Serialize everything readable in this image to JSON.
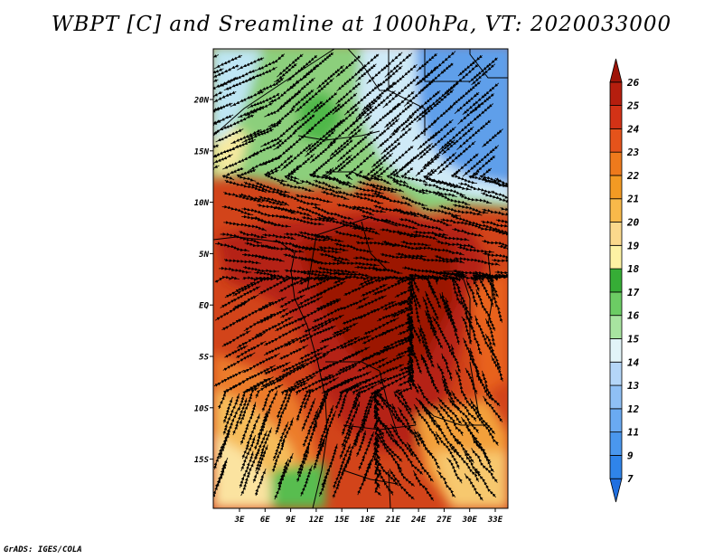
{
  "title": "WBPT [C] and Sreamline at 1000hPa, VT: 2020033000",
  "credit": "GrADS: IGES/COLA",
  "map": {
    "lat_labels": [
      "20N",
      "15N",
      "10N",
      "5N",
      "EQ",
      "5S",
      "10S",
      "15S"
    ],
    "lon_labels": [
      "3E",
      "6E",
      "9E",
      "12E",
      "15E",
      "18E",
      "21E",
      "24E",
      "27E",
      "30E",
      "33E"
    ]
  },
  "colorbar": {
    "labels": [
      "7",
      "9",
      "11",
      "12",
      "13",
      "14",
      "15",
      "16",
      "17",
      "18",
      "19",
      "20",
      "21",
      "22",
      "23",
      "24",
      "25",
      "26"
    ],
    "colors": [
      "#1f6fe0",
      "#2f84ea",
      "#4a97ee",
      "#6aaaf2",
      "#8fc0f5",
      "#b4d6f8",
      "#e2f4f8",
      "#a8e4a0",
      "#6ccc64",
      "#36ad36",
      "#fdf2a4",
      "#fbd98c",
      "#f8b94a",
      "#f39a23",
      "#ee7a1c",
      "#e5531b",
      "#d23216",
      "#b51e0e",
      "#9e1408"
    ]
  }
}
